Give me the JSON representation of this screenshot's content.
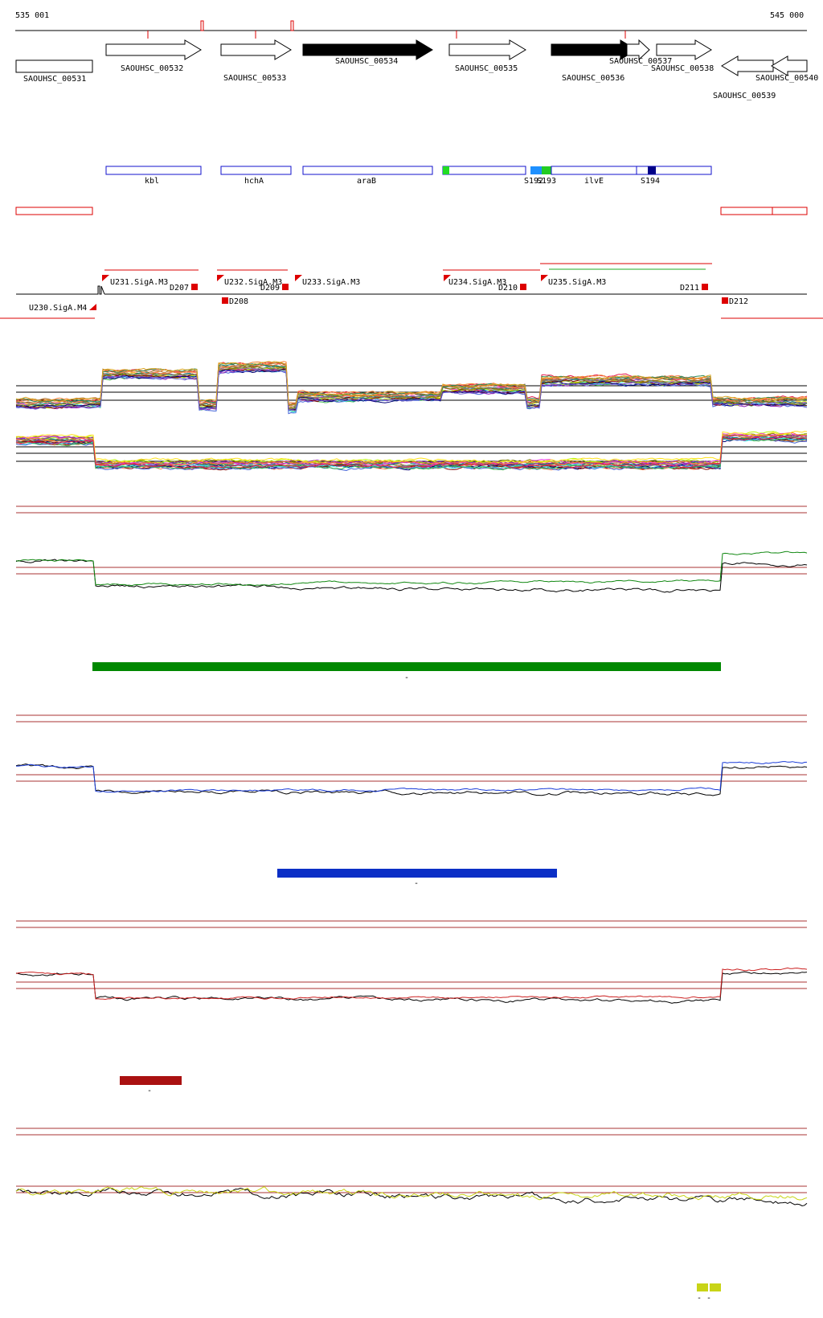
{
  "coords": {
    "start": "535 001",
    "end": "545 000"
  },
  "genes": [
    {
      "id": "SAOUHSC_00531",
      "strand": "none",
      "fill": "#ffffff",
      "label_pos": "below"
    },
    {
      "id": "SAOUHSC_00532",
      "strand": "forward",
      "fill": "#ffffff",
      "label_pos": "below"
    },
    {
      "id": "SAOUHSC_00533",
      "strand": "forward",
      "fill": "#ffffff",
      "label_pos": "below-far"
    },
    {
      "id": "SAOUHSC_00534",
      "strand": "forward",
      "fill": "#000000",
      "label_pos": "below"
    },
    {
      "id": "SAOUHSC_00535",
      "strand": "forward",
      "fill": "#ffffff",
      "label_pos": "below"
    },
    {
      "id": "SAOUHSC_00536",
      "strand": "forward",
      "fill": "#000000",
      "label_pos": "below-far"
    },
    {
      "id": "SAOUHSC_00537",
      "strand": "forward",
      "fill": "#ffffff",
      "label_pos": "below"
    },
    {
      "id": "SAOUHSC_00538",
      "strand": "forward",
      "fill": "#ffffff",
      "label_pos": "below"
    },
    {
      "id": "SAOUHSC_00539",
      "strand": "reverse",
      "fill": "#ffffff",
      "label_pos": "below-far"
    },
    {
      "id": "SAOUHSC_00540",
      "strand": "reverse",
      "fill": "#ffffff",
      "label_pos": "below-far"
    }
  ],
  "gene_names": [
    "kbl",
    "hchA",
    "araB",
    "ilvE"
  ],
  "segments": [
    "S192",
    "S193",
    "S194"
  ],
  "promoters": [
    "U230.SigA.M4",
    "U231.SigA.M3",
    "U232.SigA.M3",
    "U233.SigA.M3",
    "U234.SigA.M3",
    "U235.SigA.M3"
  ],
  "downshifts": [
    "D207",
    "D208",
    "D209",
    "D210",
    "D211",
    "D212"
  ],
  "condition_bar_labels": [
    "-",
    "-",
    "-",
    "- -"
  ],
  "colors": {
    "gene_outline": "#000000",
    "annotation_box": "#1010cc",
    "red_feature": "#dd0000",
    "green_condition": "#008800",
    "blue_condition": "#0b2fc6",
    "red_condition": "#aa1111",
    "yellow_condition": "#c8d417"
  }
}
